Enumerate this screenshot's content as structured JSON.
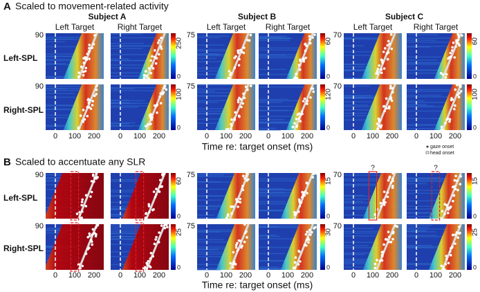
{
  "panels": [
    {
      "letter": "A",
      "title": "Scaled to movement-related activity",
      "colorbar_max": [
        [
          250,
          100
        ],
        [
          60,
          120
        ],
        [
          60,
          100
        ]
      ]
    },
    {
      "letter": "B",
      "title": "Scaled to accentuate any SLR",
      "colorbar_max": [
        [
          60,
          25
        ],
        [
          15,
          30
        ],
        [
          15,
          25
        ]
      ],
      "annotation": "?"
    }
  ],
  "subjects": [
    "Subject A",
    "Subject B",
    "Subject C"
  ],
  "targets": [
    "Left Target",
    "Right Target"
  ],
  "rows": [
    "Left-SPL",
    "Right-SPL"
  ],
  "trial_counts": [
    90,
    75,
    70
  ],
  "colorbar_min": 0,
  "xticks": [
    0,
    100,
    200
  ],
  "xlabel": "Time re: target onset (ms)",
  "legend": [
    "gaze onset",
    "head onset"
  ]
}
